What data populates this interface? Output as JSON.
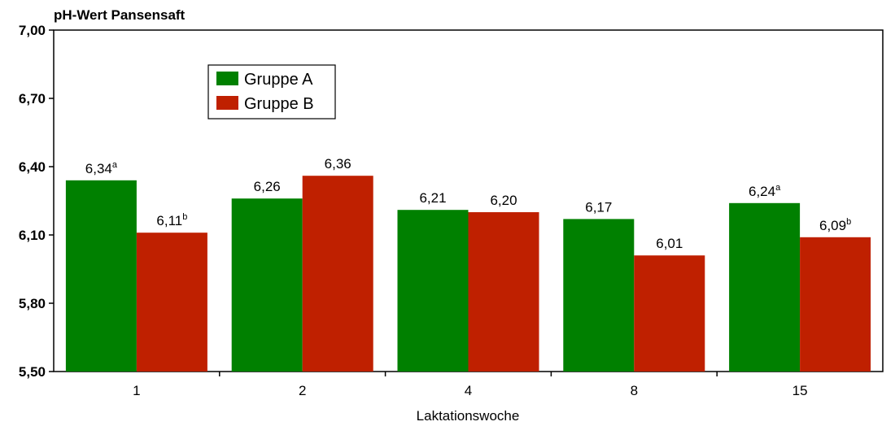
{
  "chart_data": {
    "type": "bar",
    "title": "pH-Wert Pansensaft",
    "xlabel": "Laktationswoche",
    "ylabel": "",
    "categories": [
      "1",
      "2",
      "4",
      "8",
      "15"
    ],
    "y_ticks": [
      "5,50",
      "5,80",
      "6,10",
      "6,40",
      "6,70",
      "7,00"
    ],
    "ylim": [
      5.5,
      7.0
    ],
    "grid": false,
    "legend_position": "top-left",
    "series": [
      {
        "name": "Gruppe A",
        "color": "#008000",
        "values": [
          6.34,
          6.26,
          6.21,
          6.17,
          6.24
        ],
        "labels": [
          "6,34",
          "6,26",
          "6,21",
          "6,17",
          "6,24"
        ],
        "superscripts": [
          "a",
          "",
          "",
          "",
          "a"
        ]
      },
      {
        "name": "Gruppe B",
        "color": "#BF2000",
        "values": [
          6.11,
          6.36,
          6.2,
          6.01,
          6.09
        ],
        "labels": [
          "6,11",
          "6,36",
          "6,20",
          "6,01",
          "6,09"
        ],
        "superscripts": [
          "b",
          "",
          "",
          "",
          "b"
        ]
      }
    ]
  }
}
